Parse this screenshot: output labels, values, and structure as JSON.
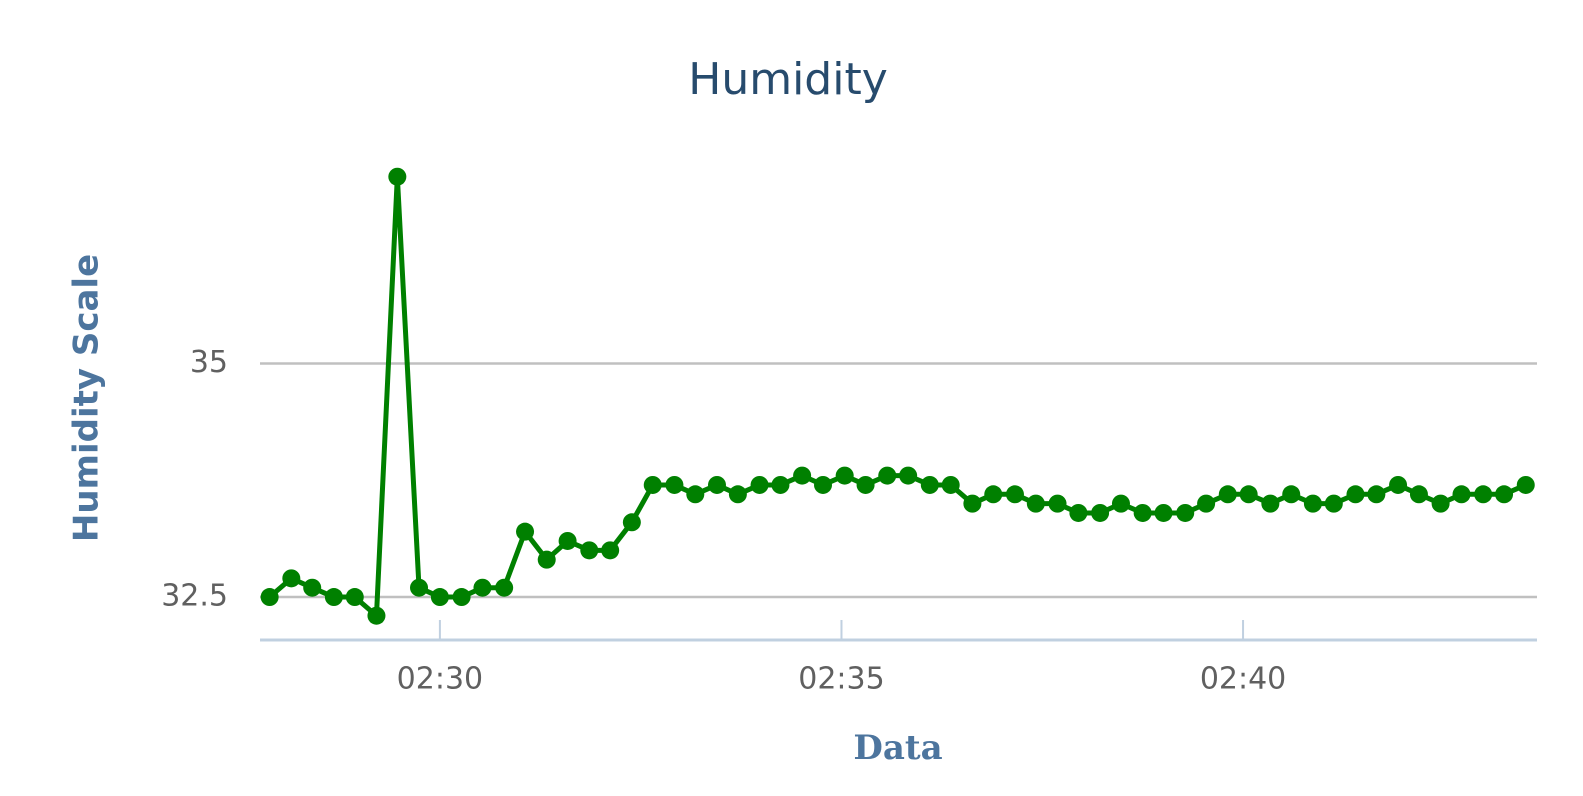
{
  "chart_data": {
    "type": "line",
    "title": "Humidity",
    "x_label": "Data",
    "y_label": "Humidity Scale",
    "x": [
      27.88,
      28.15,
      28.41,
      28.68,
      28.94,
      29.21,
      29.47,
      29.74,
      30.0,
      30.27,
      30.53,
      30.8,
      31.06,
      31.33,
      31.59,
      31.86,
      32.12,
      32.39,
      32.65,
      32.92,
      33.18,
      33.45,
      33.71,
      33.98,
      34.24,
      34.51,
      34.77,
      35.04,
      35.3,
      35.57,
      35.83,
      36.1,
      36.36,
      36.63,
      36.89,
      37.16,
      37.42,
      37.69,
      37.95,
      38.22,
      38.48,
      38.75,
      39.01,
      39.28,
      39.54,
      39.81,
      40.07,
      40.34,
      40.6,
      40.87,
      41.13,
      41.4,
      41.66,
      41.93,
      42.19,
      42.46,
      42.72,
      42.99,
      43.25,
      43.52
    ],
    "series": [
      {
        "color": "#008000",
        "values": [
          32.5,
          32.7,
          32.6,
          32.5,
          32.5,
          32.3,
          37.0,
          32.6,
          32.5,
          32.5,
          32.6,
          32.6,
          33.2,
          32.9,
          33.1,
          33.0,
          33.0,
          33.3,
          33.7,
          33.7,
          33.6,
          33.7,
          33.6,
          33.7,
          33.7,
          33.8,
          33.7,
          33.8,
          33.7,
          33.8,
          33.8,
          33.7,
          33.7,
          33.5,
          33.6,
          33.6,
          33.5,
          33.5,
          33.4,
          33.4,
          33.5,
          33.4,
          33.4,
          33.4,
          33.5,
          33.6,
          33.6,
          33.5,
          33.6,
          33.5,
          33.5,
          33.6,
          33.6,
          33.7,
          33.6,
          33.5,
          33.6,
          33.6,
          33.6,
          33.7
        ]
      }
    ],
    "xlim": [
      27.76,
      43.66
    ],
    "xticks": [
      {
        "value": 30,
        "label": "02:30"
      },
      {
        "value": 35,
        "label": "02:35"
      },
      {
        "value": 40,
        "label": "02:40"
      }
    ],
    "ylim": [
      32.04,
      37.5
    ],
    "yticks": [
      32.5,
      35
    ],
    "grid": true
  }
}
